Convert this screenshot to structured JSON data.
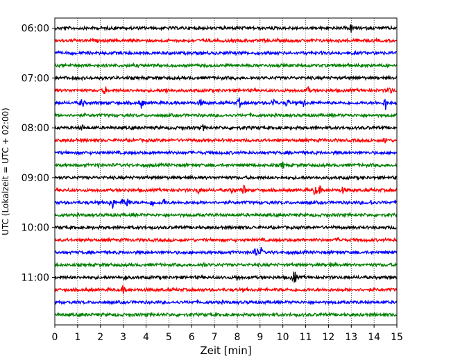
{
  "chart_data": {
    "type": "line",
    "title": "",
    "xlabel": "Zeit  [min]",
    "ylabel": "UTC (Lokalzeit = UTC + 02:00)",
    "xlim": [
      0,
      15
    ],
    "x_ticks": [
      0,
      1,
      2,
      3,
      4,
      5,
      6,
      7,
      8,
      9,
      10,
      11,
      12,
      13,
      14,
      15
    ],
    "y_tick_labels": [
      "06:00",
      "07:00",
      "08:00",
      "09:00",
      "10:00",
      "11:00"
    ],
    "grid": "vertical dotted lines at each minute",
    "trace_colors": [
      "#000000",
      "#ff0000",
      "#0000ff",
      "#008000"
    ],
    "traces": [
      {
        "start": "06:00",
        "color": "#000000",
        "events": [
          [
            13.0,
            6
          ]
        ]
      },
      {
        "start": "06:15",
        "color": "#ff0000",
        "events": []
      },
      {
        "start": "06:30",
        "color": "#0000ff",
        "events": []
      },
      {
        "start": "06:45",
        "color": "#008000",
        "events": [
          [
            12.8,
            4
          ]
        ]
      },
      {
        "start": "07:00",
        "color": "#000000",
        "events": []
      },
      {
        "start": "07:15",
        "color": "#ff0000",
        "events": [
          [
            2.2,
            7
          ],
          [
            4.9,
            5
          ],
          [
            11.1,
            6
          ],
          [
            14.7,
            5
          ]
        ]
      },
      {
        "start": "07:30",
        "color": "#0000ff",
        "events": [
          [
            1.2,
            8
          ],
          [
            3.8,
            10
          ],
          [
            6.4,
            6
          ],
          [
            8.1,
            7
          ],
          [
            9.6,
            9
          ],
          [
            10.2,
            8
          ],
          [
            10.9,
            6
          ],
          [
            14.5,
            11
          ]
        ]
      },
      {
        "start": "07:45",
        "color": "#008000",
        "events": []
      },
      {
        "start": "08:00",
        "color": "#000000",
        "events": [
          [
            1.2,
            4
          ],
          [
            6.5,
            4
          ]
        ]
      },
      {
        "start": "08:15",
        "color": "#ff0000",
        "events": [
          [
            14.5,
            5
          ]
        ]
      },
      {
        "start": "08:30",
        "color": "#0000ff",
        "events": []
      },
      {
        "start": "08:45",
        "color": "#008000",
        "events": [
          [
            1.9,
            4
          ],
          [
            10.0,
            5
          ]
        ]
      },
      {
        "start": "09:00",
        "color": "#000000",
        "events": []
      },
      {
        "start": "09:15",
        "color": "#ff0000",
        "events": [
          [
            6.3,
            5
          ],
          [
            7.8,
            6
          ],
          [
            8.3,
            9
          ],
          [
            11.4,
            8
          ],
          [
            11.6,
            7
          ],
          [
            12.6,
            6
          ]
        ]
      },
      {
        "start": "09:30",
        "color": "#0000ff",
        "events": [
          [
            2.5,
            16
          ],
          [
            3.0,
            6
          ],
          [
            3.2,
            8
          ],
          [
            4.3,
            7
          ],
          [
            4.8,
            6
          ],
          [
            13.9,
            5
          ]
        ]
      },
      {
        "start": "09:45",
        "color": "#008000",
        "events": []
      },
      {
        "start": "10:00",
        "color": "#000000",
        "events": []
      },
      {
        "start": "10:15",
        "color": "#ff0000",
        "events": [
          [
            12.5,
            5
          ]
        ]
      },
      {
        "start": "10:30",
        "color": "#0000ff",
        "events": [
          [
            8.8,
            12
          ],
          [
            9.05,
            6
          ]
        ]
      },
      {
        "start": "10:45",
        "color": "#008000",
        "events": [
          [
            6.5,
            4
          ],
          [
            12.1,
            4
          ]
        ]
      },
      {
        "start": "11:00",
        "color": "#000000",
        "events": [
          [
            3.1,
            5
          ],
          [
            8.0,
            4
          ],
          [
            10.5,
            14
          ]
        ]
      },
      {
        "start": "11:15",
        "color": "#ff0000",
        "events": [
          [
            3.0,
            5
          ]
        ]
      },
      {
        "start": "11:30",
        "color": "#0000ff",
        "events": []
      },
      {
        "start": "11:45",
        "color": "#008000",
        "events": []
      }
    ]
  }
}
